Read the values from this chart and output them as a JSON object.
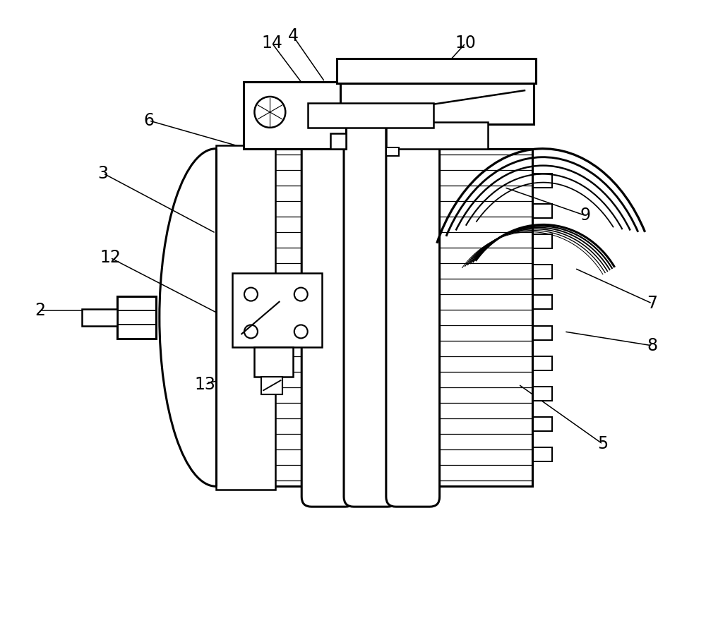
{
  "bg": "#ffffff",
  "lc": "#000000",
  "lw": 1.8,
  "tlw": 2.2,
  "fig_w": 10.0,
  "fig_h": 9.0,
  "label_fs": 17,
  "leaders": [
    [
      "2",
      0.55,
      4.6,
      1.85,
      4.6
    ],
    [
      "3",
      1.45,
      6.55,
      3.05,
      5.7
    ],
    [
      "4",
      4.15,
      8.5,
      4.6,
      7.85
    ],
    [
      "5",
      8.55,
      2.7,
      7.35,
      3.55
    ],
    [
      "6",
      2.1,
      7.3,
      3.5,
      6.9
    ],
    [
      "7",
      9.25,
      4.7,
      8.15,
      5.2
    ],
    [
      "8",
      9.25,
      4.1,
      8.0,
      4.3
    ],
    [
      "9",
      8.3,
      5.95,
      7.15,
      6.35
    ],
    [
      "10",
      6.6,
      8.4,
      6.1,
      7.85
    ],
    [
      "12",
      1.55,
      5.35,
      3.1,
      4.55
    ],
    [
      "13",
      2.9,
      3.55,
      3.55,
      3.75
    ],
    [
      "14",
      3.85,
      8.4,
      4.3,
      7.8
    ]
  ]
}
